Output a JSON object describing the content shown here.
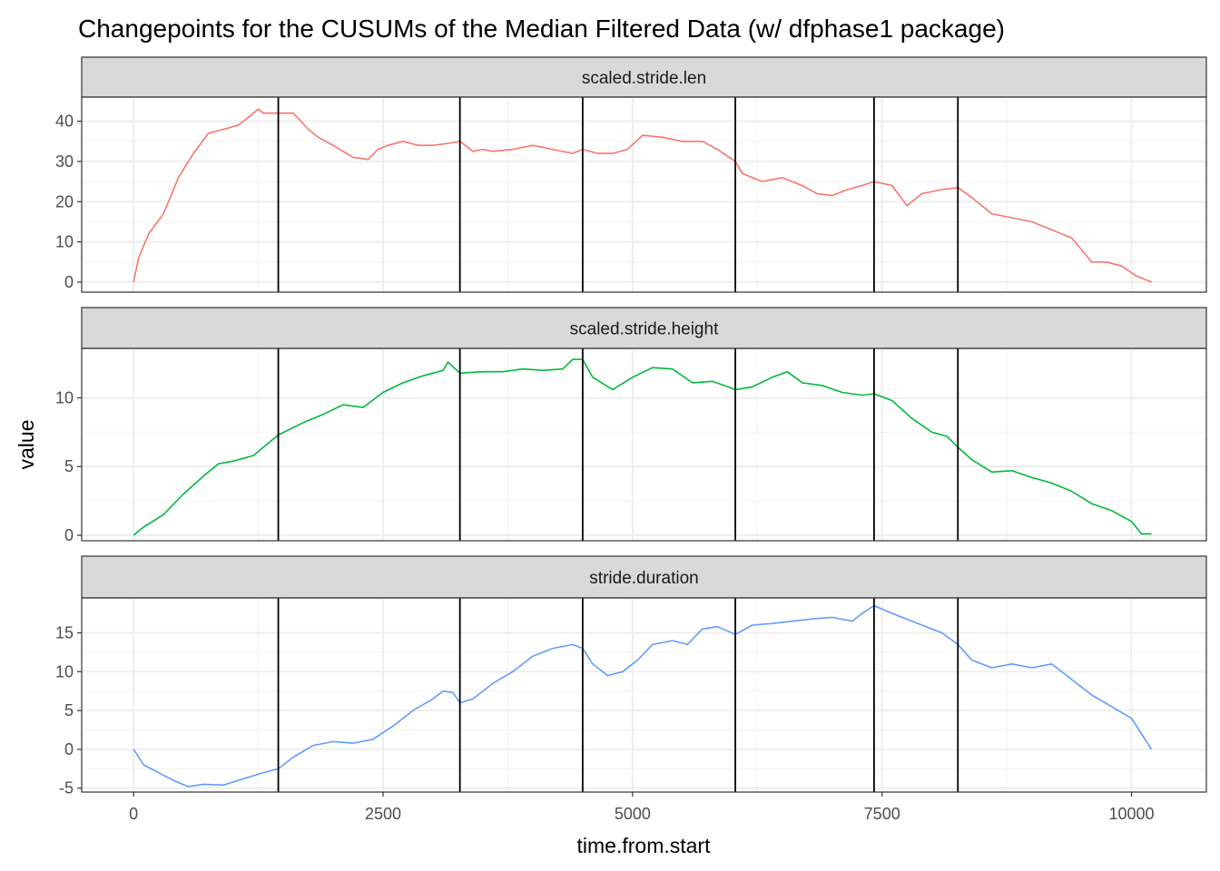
{
  "chart_data": {
    "type": "line",
    "title": "Changepoints for the CUSUMs of the Median Filtered Data (w/ dfphase1 package)",
    "xlabel": "time.from.start",
    "ylabel": "value",
    "xlim": [
      -520,
      10750
    ],
    "x_ticks": [
      0,
      2500,
      5000,
      7500,
      10000
    ],
    "changepoints": [
      1450,
      3270,
      4500,
      6030,
      7420,
      8260
    ],
    "grid": true,
    "facets": [
      {
        "name": "scaled.stride.len",
        "color": "#F8766D",
        "ylim": [
          -2.5,
          46
        ],
        "y_ticks": [
          0,
          10,
          20,
          30,
          40
        ],
        "x": [
          0,
          50,
          150,
          300,
          450,
          600,
          750,
          900,
          1050,
          1150,
          1250,
          1300,
          1450,
          1600,
          1750,
          1850,
          2000,
          2200,
          2350,
          2450,
          2550,
          2700,
          2850,
          3000,
          3150,
          3270,
          3400,
          3500,
          3600,
          3800,
          4000,
          4200,
          4400,
          4500,
          4650,
          4800,
          4950,
          5100,
          5300,
          5500,
          5700,
          5850,
          6030,
          6100,
          6300,
          6500,
          6700,
          6850,
          7000,
          7150,
          7300,
          7420,
          7600,
          7750,
          7900,
          8100,
          8260,
          8400,
          8600,
          8800,
          9000,
          9200,
          9400,
          9600,
          9750,
          9900,
          10050,
          10200
        ],
        "values": [
          0,
          6,
          12,
          17,
          26,
          32,
          37,
          38,
          39,
          41,
          43,
          42,
          42,
          42,
          38,
          36,
          34,
          31,
          30.5,
          33,
          34,
          35,
          34,
          34,
          34.5,
          35,
          32.5,
          33,
          32.5,
          33,
          34,
          33,
          32,
          33,
          32,
          32,
          33,
          36.5,
          36,
          35,
          35,
          33,
          30,
          27,
          25,
          26,
          24,
          22,
          21.5,
          23,
          24,
          25,
          24,
          19,
          22,
          23,
          23.5,
          21,
          17,
          16,
          15,
          13,
          11,
          5,
          5,
          4,
          1.5,
          0
        ]
      },
      {
        "name": "scaled.stride.height",
        "color": "#00BA38",
        "ylim": [
          -0.4,
          13.6
        ],
        "y_ticks": [
          0,
          5,
          10
        ],
        "x": [
          0,
          100,
          300,
          500,
          700,
          850,
          1000,
          1200,
          1450,
          1700,
          1900,
          2100,
          2300,
          2500,
          2700,
          2900,
          3100,
          3150,
          3270,
          3500,
          3700,
          3900,
          4100,
          4300,
          4400,
          4500,
          4600,
          4800,
          5000,
          5200,
          5400,
          5600,
          5800,
          6030,
          6200,
          6400,
          6550,
          6700,
          6900,
          7100,
          7300,
          7420,
          7600,
          7800,
          8000,
          8150,
          8260,
          8400,
          8600,
          8800,
          9000,
          9200,
          9400,
          9600,
          9800,
          10000,
          10100,
          10200
        ],
        "values": [
          0,
          0.6,
          1.5,
          3,
          4.3,
          5.2,
          5.4,
          5.8,
          7.3,
          8.2,
          8.8,
          9.5,
          9.3,
          10.4,
          11.1,
          11.6,
          12,
          12.6,
          11.8,
          11.9,
          11.9,
          12.1,
          12,
          12.1,
          12.8,
          12.8,
          11.5,
          10.6,
          11.5,
          12.2,
          12.1,
          11.1,
          11.2,
          10.6,
          10.8,
          11.5,
          11.9,
          11.1,
          10.9,
          10.4,
          10.2,
          10.3,
          9.8,
          8.5,
          7.5,
          7.2,
          6.4,
          5.5,
          4.6,
          4.7,
          4.2,
          3.8,
          3.2,
          2.3,
          1.8,
          1,
          0.1,
          0.1
        ]
      },
      {
        "name": "stride.duration",
        "color": "#619CFF",
        "ylim": [
          -5.5,
          19.5
        ],
        "y_ticks": [
          -5,
          0,
          5,
          10,
          15
        ],
        "x": [
          0,
          100,
          250,
          400,
          550,
          700,
          900,
          1100,
          1300,
          1450,
          1600,
          1800,
          2000,
          2200,
          2400,
          2600,
          2800,
          3000,
          3100,
          3200,
          3270,
          3400,
          3600,
          3800,
          4000,
          4200,
          4400,
          4500,
          4600,
          4750,
          4900,
          5050,
          5200,
          5400,
          5550,
          5700,
          5850,
          6030,
          6200,
          6400,
          6600,
          6800,
          7000,
          7200,
          7300,
          7420,
          7550,
          7700,
          7900,
          8100,
          8260,
          8400,
          8600,
          8800,
          9000,
          9200,
          9400,
          9600,
          9800,
          10000,
          10100,
          10200
        ],
        "values": [
          0,
          -2,
          -3,
          -4,
          -4.8,
          -4.5,
          -4.6,
          -3.8,
          -3,
          -2.5,
          -1,
          0.5,
          1,
          0.8,
          1.3,
          3,
          5,
          6.5,
          7.5,
          7.3,
          6,
          6.5,
          8.5,
          10,
          12,
          13,
          13.5,
          13,
          11,
          9.5,
          10,
          11.5,
          13.5,
          14,
          13.5,
          15.5,
          15.8,
          14.8,
          16,
          16.2,
          16.5,
          16.8,
          17,
          16.5,
          17.5,
          18.5,
          17.8,
          17,
          16,
          15,
          13.5,
          11.5,
          10.5,
          11,
          10.5,
          11,
          9,
          7,
          5.5,
          4,
          2,
          0
        ]
      }
    ]
  }
}
